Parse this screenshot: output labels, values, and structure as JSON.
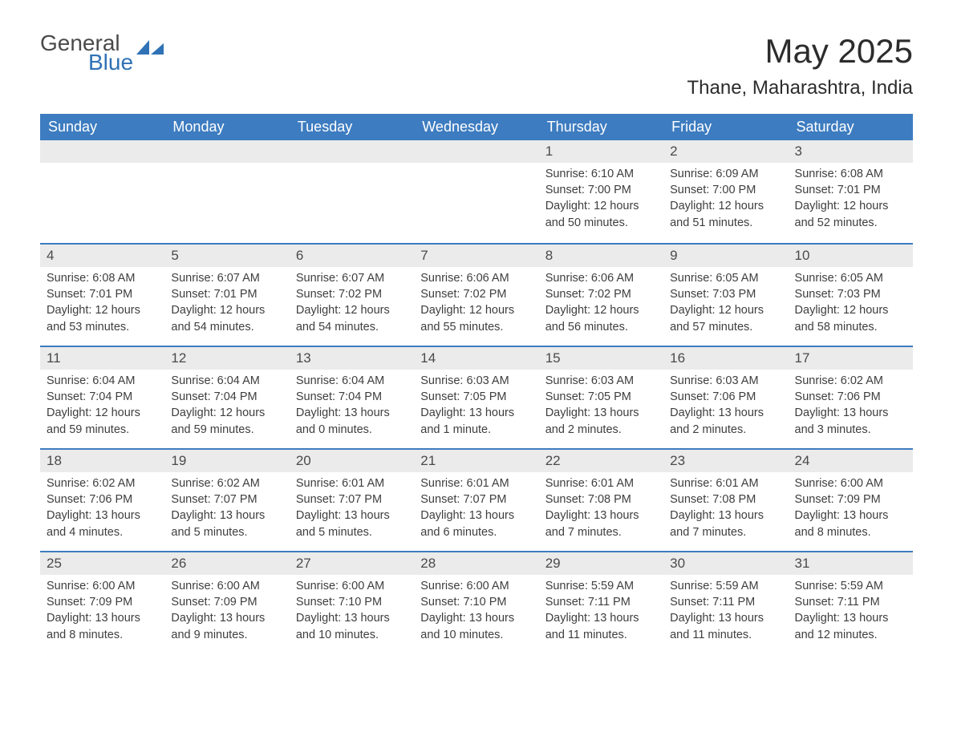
{
  "logo": {
    "general": "General",
    "blue": "Blue"
  },
  "title": "May 2025",
  "location": "Thane, Maharashtra, India",
  "colors": {
    "header_bg": "#3d7cc0",
    "header_text": "#ffffff",
    "daynum_bg": "#ebebeb",
    "week_border": "#3d7cc0",
    "body_text": "#3e3e3e",
    "logo_blue": "#2f72b6",
    "logo_gray": "#4a4a4a",
    "page_bg": "#ffffff"
  },
  "dow": [
    "Sunday",
    "Monday",
    "Tuesday",
    "Wednesday",
    "Thursday",
    "Friday",
    "Saturday"
  ],
  "weeks": [
    [
      {
        "n": "",
        "empty": true
      },
      {
        "n": "",
        "empty": true
      },
      {
        "n": "",
        "empty": true
      },
      {
        "n": "",
        "empty": true
      },
      {
        "n": "1",
        "sr": "Sunrise: 6:10 AM",
        "ss": "Sunset: 7:00 PM",
        "d1": "Daylight: 12 hours",
        "d2": "and 50 minutes."
      },
      {
        "n": "2",
        "sr": "Sunrise: 6:09 AM",
        "ss": "Sunset: 7:00 PM",
        "d1": "Daylight: 12 hours",
        "d2": "and 51 minutes."
      },
      {
        "n": "3",
        "sr": "Sunrise: 6:08 AM",
        "ss": "Sunset: 7:01 PM",
        "d1": "Daylight: 12 hours",
        "d2": "and 52 minutes."
      }
    ],
    [
      {
        "n": "4",
        "sr": "Sunrise: 6:08 AM",
        "ss": "Sunset: 7:01 PM",
        "d1": "Daylight: 12 hours",
        "d2": "and 53 minutes."
      },
      {
        "n": "5",
        "sr": "Sunrise: 6:07 AM",
        "ss": "Sunset: 7:01 PM",
        "d1": "Daylight: 12 hours",
        "d2": "and 54 minutes."
      },
      {
        "n": "6",
        "sr": "Sunrise: 6:07 AM",
        "ss": "Sunset: 7:02 PM",
        "d1": "Daylight: 12 hours",
        "d2": "and 54 minutes."
      },
      {
        "n": "7",
        "sr": "Sunrise: 6:06 AM",
        "ss": "Sunset: 7:02 PM",
        "d1": "Daylight: 12 hours",
        "d2": "and 55 minutes."
      },
      {
        "n": "8",
        "sr": "Sunrise: 6:06 AM",
        "ss": "Sunset: 7:02 PM",
        "d1": "Daylight: 12 hours",
        "d2": "and 56 minutes."
      },
      {
        "n": "9",
        "sr": "Sunrise: 6:05 AM",
        "ss": "Sunset: 7:03 PM",
        "d1": "Daylight: 12 hours",
        "d2": "and 57 minutes."
      },
      {
        "n": "10",
        "sr": "Sunrise: 6:05 AM",
        "ss": "Sunset: 7:03 PM",
        "d1": "Daylight: 12 hours",
        "d2": "and 58 minutes."
      }
    ],
    [
      {
        "n": "11",
        "sr": "Sunrise: 6:04 AM",
        "ss": "Sunset: 7:04 PM",
        "d1": "Daylight: 12 hours",
        "d2": "and 59 minutes."
      },
      {
        "n": "12",
        "sr": "Sunrise: 6:04 AM",
        "ss": "Sunset: 7:04 PM",
        "d1": "Daylight: 12 hours",
        "d2": "and 59 minutes."
      },
      {
        "n": "13",
        "sr": "Sunrise: 6:04 AM",
        "ss": "Sunset: 7:04 PM",
        "d1": "Daylight: 13 hours",
        "d2": "and 0 minutes."
      },
      {
        "n": "14",
        "sr": "Sunrise: 6:03 AM",
        "ss": "Sunset: 7:05 PM",
        "d1": "Daylight: 13 hours",
        "d2": "and 1 minute."
      },
      {
        "n": "15",
        "sr": "Sunrise: 6:03 AM",
        "ss": "Sunset: 7:05 PM",
        "d1": "Daylight: 13 hours",
        "d2": "and 2 minutes."
      },
      {
        "n": "16",
        "sr": "Sunrise: 6:03 AM",
        "ss": "Sunset: 7:06 PM",
        "d1": "Daylight: 13 hours",
        "d2": "and 2 minutes."
      },
      {
        "n": "17",
        "sr": "Sunrise: 6:02 AM",
        "ss": "Sunset: 7:06 PM",
        "d1": "Daylight: 13 hours",
        "d2": "and 3 minutes."
      }
    ],
    [
      {
        "n": "18",
        "sr": "Sunrise: 6:02 AM",
        "ss": "Sunset: 7:06 PM",
        "d1": "Daylight: 13 hours",
        "d2": "and 4 minutes."
      },
      {
        "n": "19",
        "sr": "Sunrise: 6:02 AM",
        "ss": "Sunset: 7:07 PM",
        "d1": "Daylight: 13 hours",
        "d2": "and 5 minutes."
      },
      {
        "n": "20",
        "sr": "Sunrise: 6:01 AM",
        "ss": "Sunset: 7:07 PM",
        "d1": "Daylight: 13 hours",
        "d2": "and 5 minutes."
      },
      {
        "n": "21",
        "sr": "Sunrise: 6:01 AM",
        "ss": "Sunset: 7:07 PM",
        "d1": "Daylight: 13 hours",
        "d2": "and 6 minutes."
      },
      {
        "n": "22",
        "sr": "Sunrise: 6:01 AM",
        "ss": "Sunset: 7:08 PM",
        "d1": "Daylight: 13 hours",
        "d2": "and 7 minutes."
      },
      {
        "n": "23",
        "sr": "Sunrise: 6:01 AM",
        "ss": "Sunset: 7:08 PM",
        "d1": "Daylight: 13 hours",
        "d2": "and 7 minutes."
      },
      {
        "n": "24",
        "sr": "Sunrise: 6:00 AM",
        "ss": "Sunset: 7:09 PM",
        "d1": "Daylight: 13 hours",
        "d2": "and 8 minutes."
      }
    ],
    [
      {
        "n": "25",
        "sr": "Sunrise: 6:00 AM",
        "ss": "Sunset: 7:09 PM",
        "d1": "Daylight: 13 hours",
        "d2": "and 8 minutes."
      },
      {
        "n": "26",
        "sr": "Sunrise: 6:00 AM",
        "ss": "Sunset: 7:09 PM",
        "d1": "Daylight: 13 hours",
        "d2": "and 9 minutes."
      },
      {
        "n": "27",
        "sr": "Sunrise: 6:00 AM",
        "ss": "Sunset: 7:10 PM",
        "d1": "Daylight: 13 hours",
        "d2": "and 10 minutes."
      },
      {
        "n": "28",
        "sr": "Sunrise: 6:00 AM",
        "ss": "Sunset: 7:10 PM",
        "d1": "Daylight: 13 hours",
        "d2": "and 10 minutes."
      },
      {
        "n": "29",
        "sr": "Sunrise: 5:59 AM",
        "ss": "Sunset: 7:11 PM",
        "d1": "Daylight: 13 hours",
        "d2": "and 11 minutes."
      },
      {
        "n": "30",
        "sr": "Sunrise: 5:59 AM",
        "ss": "Sunset: 7:11 PM",
        "d1": "Daylight: 13 hours",
        "d2": "and 11 minutes."
      },
      {
        "n": "31",
        "sr": "Sunrise: 5:59 AM",
        "ss": "Sunset: 7:11 PM",
        "d1": "Daylight: 13 hours",
        "d2": "and 12 minutes."
      }
    ]
  ]
}
